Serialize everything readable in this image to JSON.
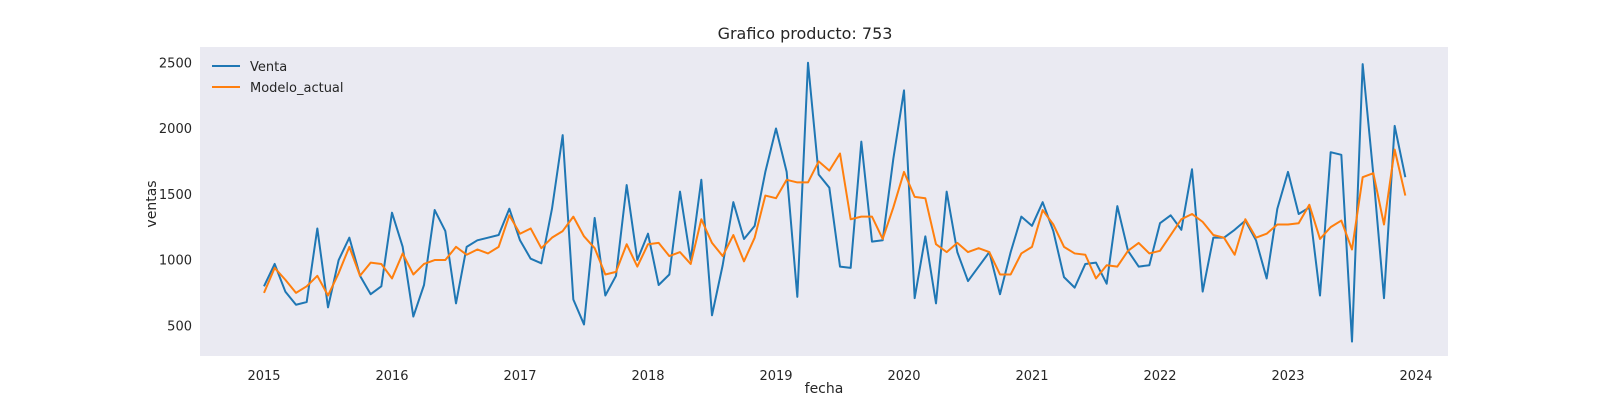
{
  "chart_data": {
    "type": "line",
    "title": "Grafico producto: 753",
    "xlabel": "fecha",
    "ylabel": "ventas",
    "x_start": "2015-01",
    "x_ticks": [
      "2015",
      "2016",
      "2017",
      "2018",
      "2019",
      "2020",
      "2021",
      "2022",
      "2023",
      "2024"
    ],
    "y_ticks": [
      500,
      1000,
      1500,
      2000,
      2500
    ],
    "xlim": [
      "2014-07",
      "2024-04"
    ],
    "ylim": [
      270,
      2620
    ],
    "grid": false,
    "legend_position": "top-left",
    "series": [
      {
        "name": "Venta",
        "color": "#1f77b4",
        "values": [
          800,
          970,
          760,
          660,
          680,
          1240,
          640,
          1000,
          1170,
          880,
          740,
          800,
          1360,
          1100,
          570,
          810,
          1380,
          1220,
          670,
          1100,
          1150,
          1170,
          1190,
          1390,
          1150,
          1010,
          975,
          1390,
          1950,
          700,
          510,
          1320,
          730,
          880,
          1570,
          1000,
          1200,
          810,
          890,
          1520,
          1000,
          1610,
          580,
          960,
          1440,
          1160,
          1260,
          1670,
          2000,
          1670,
          720,
          2500,
          1650,
          1550,
          950,
          940,
          1900,
          1140,
          1150,
          1770,
          2290,
          710,
          1180,
          670,
          1520,
          1060,
          840,
          950,
          1060,
          740,
          1060,
          1330,
          1260,
          1440,
          1220,
          870,
          790,
          970,
          980,
          820,
          1410,
          1070,
          950,
          960,
          1280,
          1340,
          1230,
          1690,
          760,
          1170,
          1170,
          1230,
          1300,
          1150,
          860,
          1390,
          1670,
          1350,
          1400,
          730,
          1820,
          1800,
          380,
          2490,
          1650,
          710,
          2020,
          1630
        ]
      },
      {
        "name": "Modelo_actual",
        "color": "#ff7f0e",
        "values": [
          750,
          940,
          850,
          750,
          800,
          880,
          730,
          900,
          1100,
          880,
          980,
          970,
          860,
          1050,
          890,
          970,
          1000,
          1000,
          1100,
          1040,
          1080,
          1050,
          1100,
          1340,
          1200,
          1240,
          1090,
          1170,
          1220,
          1330,
          1180,
          1090,
          890,
          910,
          1120,
          950,
          1120,
          1130,
          1030,
          1060,
          970,
          1310,
          1130,
          1030,
          1190,
          990,
          1170,
          1490,
          1470,
          1610,
          1590,
          1590,
          1750,
          1680,
          1810,
          1310,
          1330,
          1330,
          1160,
          1400,
          1670,
          1480,
          1470,
          1120,
          1060,
          1130,
          1060,
          1090,
          1060,
          890,
          890,
          1050,
          1100,
          1380,
          1270,
          1100,
          1050,
          1040,
          860,
          960,
          950,
          1070,
          1130,
          1050,
          1070,
          1190,
          1310,
          1350,
          1290,
          1190,
          1170,
          1040,
          1310,
          1170,
          1200,
          1270,
          1270,
          1280,
          1420,
          1160,
          1250,
          1300,
          1080,
          1630,
          1660,
          1270,
          1840,
          1490
        ]
      }
    ]
  }
}
